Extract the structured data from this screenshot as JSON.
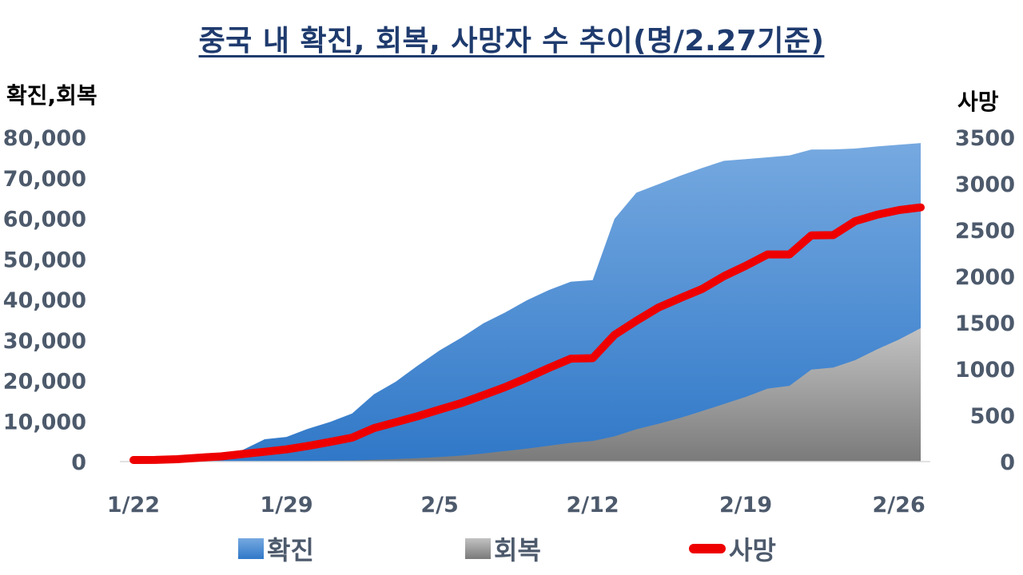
{
  "chart_data": {
    "type": "area",
    "title": "중국 내 확진, 회복, 사망자 수 추이(명/2.27기준)",
    "ylabel": "확진,회복",
    "y2label": "사망",
    "ylim": [
      0,
      80000
    ],
    "y2lim": [
      0,
      3500
    ],
    "yticks": [
      "0",
      "10,000",
      "20,000",
      "30,000",
      "40,000",
      "50,000",
      "60,000",
      "70,000",
      "80,000"
    ],
    "y2ticks": [
      "0",
      "500",
      "1000",
      "1500",
      "2000",
      "2500",
      "3000",
      "3500"
    ],
    "xticks": [
      {
        "label": "1/22",
        "index": 0
      },
      {
        "label": "1/29",
        "index": 7
      },
      {
        "label": "2/5",
        "index": 14
      },
      {
        "label": "2/12",
        "index": 21
      },
      {
        "label": "2/19",
        "index": 28
      },
      {
        "label": "2/26",
        "index": 35
      }
    ],
    "x": [
      "1/22",
      "1/23",
      "1/24",
      "1/25",
      "1/26",
      "1/27",
      "1/28",
      "1/29",
      "1/30",
      "1/31",
      "2/1",
      "2/2",
      "2/3",
      "2/4",
      "2/5",
      "2/6",
      "2/7",
      "2/8",
      "2/9",
      "2/10",
      "2/11",
      "2/12",
      "2/13",
      "2/14",
      "2/15",
      "2/16",
      "2/17",
      "2/18",
      "2/19",
      "2/20",
      "2/21",
      "2/22",
      "2/23",
      "2/24",
      "2/25",
      "2/26",
      "2/27"
    ],
    "series": [
      {
        "name": "확진",
        "kind": "area",
        "axis": "left",
        "color": "#4a8fd4",
        "values": [
          548,
          643,
          920,
          1406,
          2075,
          2877,
          5509,
          6087,
          8141,
          9802,
          11891,
          16630,
          19716,
          23707,
          27440,
          30587,
          34110,
          36814,
          39829,
          42354,
          44386,
          44759,
          59895,
          66358,
          68413,
          70513,
          72434,
          74211,
          74619,
          75077,
          75550,
          77001,
          77022,
          77241,
          77754,
          78166,
          78600
        ]
      },
      {
        "name": "회복",
        "kind": "area",
        "axis": "left",
        "color": "#9e9e9e",
        "values": [
          28,
          30,
          36,
          39,
          49,
          58,
          101,
          120,
          135,
          214,
          275,
          463,
          614,
          843,
          1115,
          1477,
          1999,
          2596,
          3219,
          3918,
          4636,
          5082,
          6217,
          7977,
          9298,
          10755,
          12462,
          14206,
          15962,
          18014,
          18704,
          22699,
          23187,
          25015,
          27676,
          30084,
          32930
        ]
      },
      {
        "name": "사망",
        "kind": "line",
        "axis": "right",
        "color": "#ee0000",
        "values": [
          17,
          18,
          26,
          42,
          56,
          82,
          106,
          132,
          170,
          213,
          259,
          361,
          425,
          490,
          562,
          632,
          717,
          804,
          904,
          1011,
          1111,
          1116,
          1368,
          1520,
          1662,
          1765,
          1863,
          2002,
          2114,
          2236,
          2236,
          2442,
          2445,
          2595,
          2665,
          2715,
          2744
        ]
      }
    ],
    "legend": [
      {
        "label": "확진",
        "swatch": "box",
        "color": "#4a8fd4"
      },
      {
        "label": "회복",
        "swatch": "box",
        "color": "#9e9e9e"
      },
      {
        "label": "사망",
        "swatch": "line",
        "color": "#ee0000"
      }
    ],
    "legend_position": "bottom",
    "grid": false
  }
}
